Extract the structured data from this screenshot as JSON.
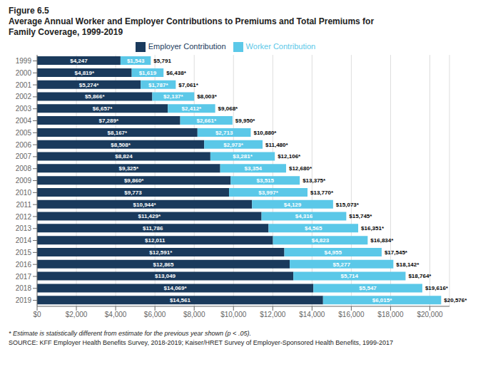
{
  "chart_data": {
    "type": "bar",
    "orientation": "horizontal",
    "stacked": true,
    "data_labels": true,
    "grid": true,
    "legend": "top",
    "title": "Figure 6.5",
    "subtitle": [
      "Average Annual Worker and Employer Contributions to Premiums and Total Premiums for",
      "Family Coverage, 1999-2019"
    ],
    "categories": [
      "1999",
      "2000",
      "2001",
      "2002",
      "2003",
      "2004",
      "2005",
      "2006",
      "2007",
      "2008",
      "2009",
      "2010",
      "2011",
      "2012",
      "2013",
      "2014",
      "2015",
      "2016",
      "2017",
      "2018",
      "2019"
    ],
    "series": [
      {
        "name": "Employer Contribution",
        "color": "#1a3a5c",
        "values": [
          4247,
          4819,
          5274,
          5866,
          6657,
          7289,
          8167,
          8508,
          8824,
          9325,
          9860,
          9773,
          10944,
          11429,
          11786,
          12011,
          12591,
          12865,
          13049,
          14069,
          14561
        ],
        "value_labels": [
          "$4,247",
          "$4,819*",
          "$5,274*",
          "$5,866*",
          "$6,657*",
          "$7,289*",
          "$8,167*",
          "$8,508*",
          "$8,824",
          "$9,325*",
          "$9,860*",
          "$9,773",
          "$10,944*",
          "$11,429*",
          "$11,786",
          "$12,011",
          "$12,591*",
          "$12,865",
          "$13,049",
          "$14,069*",
          "$14,561"
        ]
      },
      {
        "name": "Worker Contribution",
        "color": "#5bc8e8",
        "values": [
          1543,
          1619,
          1787,
          2137,
          2412,
          2661,
          2713,
          2973,
          3281,
          3354,
          3515,
          3997,
          4129,
          4316,
          4565,
          4823,
          4955,
          5277,
          5714,
          5547,
          6015
        ],
        "value_labels": [
          "$1,543",
          "$1,619",
          "$1,787*",
          "$2,137*",
          "$2,412*",
          "$2,661*",
          "$2,713",
          "$2,973*",
          "$3,281*",
          "$3,354",
          "$3,515",
          "$3,997*",
          "$4,129",
          "$4,316",
          "$4,565",
          "$4,823",
          "$4,955",
          "$5,277",
          "$5,714",
          "$5,547",
          "$6,015*"
        ]
      }
    ],
    "totals": [
      5791,
      6438,
      7061,
      8003,
      9068,
      9950,
      10880,
      11480,
      12106,
      12680,
      13375,
      13770,
      15073,
      15745,
      16351,
      16834,
      17545,
      18142,
      18764,
      19616,
      20576
    ],
    "total_labels": [
      "$5,791",
      "$6,438*",
      "$7,061*",
      "$8,003*",
      "$9,068*",
      "$9,950*",
      "$10,880*",
      "$11,480*",
      "$12,106*",
      "$12,680*",
      "$13,375*",
      "$13,770*",
      "$15,073*",
      "$15,745*",
      "$16,351*",
      "$16,834*",
      "$17,545*",
      "$18,142*",
      "$18,764*",
      "$19,616*",
      "$20,576*"
    ],
    "xlim": [
      0,
      21000
    ],
    "xticks": [
      {
        "value": 0,
        "label": "$0"
      },
      {
        "value": 2000,
        "label": "$2,000"
      },
      {
        "value": 4000,
        "label": "$4,000"
      },
      {
        "value": 6000,
        "label": "$6,000"
      },
      {
        "value": 8000,
        "label": "$8,000"
      },
      {
        "value": 10000,
        "label": "$10,000"
      },
      {
        "value": 12000,
        "label": "$12,000"
      },
      {
        "value": 14000,
        "label": "$14,000"
      },
      {
        "value": 16000,
        "label": "$16,000"
      },
      {
        "value": 18000,
        "label": "$18,000"
      },
      {
        "value": 20000,
        "label": "$20,000"
      }
    ],
    "annotations": [
      "* Estimate is statistically different from estimate for the previous year shown (p < .05).",
      "SOURCE: KFF Employer Health Benefits Survey, 2018-2019; Kaiser/HRET Survey of Employer-Sponsored Health Benefits, 1999-2017"
    ]
  }
}
